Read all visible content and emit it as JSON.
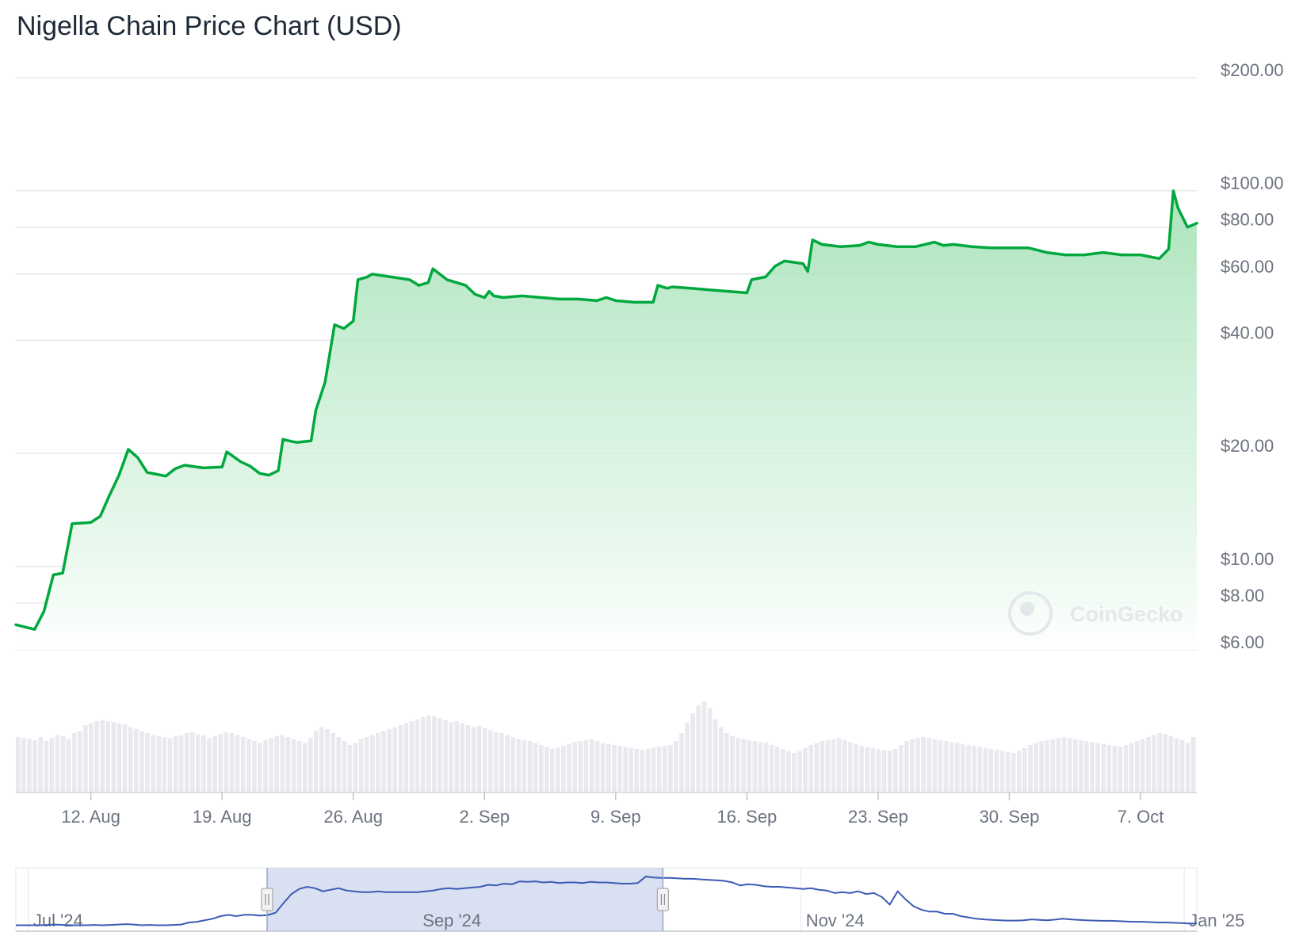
{
  "watermark": "CoinGecko",
  "chart_data": {
    "type": "area",
    "title": "Nigella Chain Price Chart (USD)",
    "xlabel": "",
    "ylabel": "",
    "y_scale": "log",
    "ylim": [
      6,
      200
    ],
    "y_ticks": [
      {
        "value": 200,
        "label": "$200.00"
      },
      {
        "value": 100,
        "label": "$100.00"
      },
      {
        "value": 80,
        "label": "$80.00"
      },
      {
        "value": 60,
        "label": "$60.00"
      },
      {
        "value": 40,
        "label": "$40.00"
      },
      {
        "value": 20,
        "label": "$20.00"
      },
      {
        "value": 10,
        "label": "$10.00"
      },
      {
        "value": 8,
        "label": "$8.00"
      },
      {
        "value": 6,
        "label": "$6.00"
      }
    ],
    "x_range": [
      "2024-08-08",
      "2024-10-10"
    ],
    "x_ticks": [
      {
        "date": "2024-08-12",
        "label": "12. Aug"
      },
      {
        "date": "2024-08-19",
        "label": "19. Aug"
      },
      {
        "date": "2024-08-26",
        "label": "26. Aug"
      },
      {
        "date": "2024-09-02",
        "label": "2. Sep"
      },
      {
        "date": "2024-09-09",
        "label": "9. Sep"
      },
      {
        "date": "2024-09-16",
        "label": "16. Sep"
      },
      {
        "date": "2024-09-23",
        "label": "23. Sep"
      },
      {
        "date": "2024-09-30",
        "label": "30. Sep"
      },
      {
        "date": "2024-10-07",
        "label": "7. Oct"
      }
    ],
    "series": [
      {
        "color": "#00a83e",
        "points": [
          [
            "2024-08-08",
            7.0
          ],
          [
            "2024-08-09",
            6.8
          ],
          [
            "2024-08-09T12",
            7.6
          ],
          [
            "2024-08-10",
            9.5
          ],
          [
            "2024-08-10T12",
            9.6
          ],
          [
            "2024-08-11",
            13.0
          ],
          [
            "2024-08-12",
            13.1
          ],
          [
            "2024-08-12T12",
            13.6
          ],
          [
            "2024-08-13",
            15.5
          ],
          [
            "2024-08-13T12",
            17.5
          ],
          [
            "2024-08-14",
            20.5
          ],
          [
            "2024-08-14T12",
            19.5
          ],
          [
            "2024-08-15",
            17.8
          ],
          [
            "2024-08-15T12",
            17.6
          ],
          [
            "2024-08-16",
            17.4
          ],
          [
            "2024-08-16T12",
            18.2
          ],
          [
            "2024-08-17",
            18.6
          ],
          [
            "2024-08-18",
            18.3
          ],
          [
            "2024-08-19",
            18.4
          ],
          [
            "2024-08-19T06",
            20.2
          ],
          [
            "2024-08-20",
            19.0
          ],
          [
            "2024-08-20T12",
            18.5
          ],
          [
            "2024-08-21",
            17.7
          ],
          [
            "2024-08-21T12",
            17.5
          ],
          [
            "2024-08-22",
            18.0
          ],
          [
            "2024-08-22T06",
            21.8
          ],
          [
            "2024-08-22T18",
            21.5
          ],
          [
            "2024-08-23",
            21.4
          ],
          [
            "2024-08-23T18",
            21.6
          ],
          [
            "2024-08-24",
            26.0
          ],
          [
            "2024-08-24T12",
            31.0
          ],
          [
            "2024-08-25",
            44.0
          ],
          [
            "2024-08-25T12",
            43.0
          ],
          [
            "2024-08-26",
            45.0
          ],
          [
            "2024-08-26T06",
            58.0
          ],
          [
            "2024-08-26T18",
            59.0
          ],
          [
            "2024-08-27",
            60.0
          ],
          [
            "2024-08-28",
            59.0
          ],
          [
            "2024-08-29",
            58.0
          ],
          [
            "2024-08-29T12",
            56.0
          ],
          [
            "2024-08-30",
            57.0
          ],
          [
            "2024-08-30T06",
            62.0
          ],
          [
            "2024-08-31",
            58.0
          ],
          [
            "2024-09-01",
            56.0
          ],
          [
            "2024-09-01T12",
            53.0
          ],
          [
            "2024-09-02",
            52.0
          ],
          [
            "2024-09-02T06",
            54.0
          ],
          [
            "2024-09-02T12",
            52.5
          ],
          [
            "2024-09-03",
            52.0
          ],
          [
            "2024-09-04",
            52.5
          ],
          [
            "2024-09-05",
            52.0
          ],
          [
            "2024-09-06",
            51.5
          ],
          [
            "2024-09-07",
            51.5
          ],
          [
            "2024-09-08",
            51.0
          ],
          [
            "2024-09-08T12",
            52.0
          ],
          [
            "2024-09-09",
            51.0
          ],
          [
            "2024-09-10",
            50.5
          ],
          [
            "2024-09-11",
            50.5
          ],
          [
            "2024-09-11T06",
            56.0
          ],
          [
            "2024-09-11T18",
            55.0
          ],
          [
            "2024-09-12",
            55.5
          ],
          [
            "2024-09-13",
            55.0
          ],
          [
            "2024-09-14",
            54.5
          ],
          [
            "2024-09-15",
            54.0
          ],
          [
            "2024-09-16",
            53.5
          ],
          [
            "2024-09-16T06",
            58.0
          ],
          [
            "2024-09-17",
            59.0
          ],
          [
            "2024-09-17T12",
            63.0
          ],
          [
            "2024-09-18",
            65.0
          ],
          [
            "2024-09-19",
            64.0
          ],
          [
            "2024-09-19T06",
            61.0
          ],
          [
            "2024-09-19T12",
            74.0
          ],
          [
            "2024-09-20",
            72.0
          ],
          [
            "2024-09-21",
            71.0
          ],
          [
            "2024-09-22",
            71.5
          ],
          [
            "2024-09-22T12",
            73.0
          ],
          [
            "2024-09-23",
            72.0
          ],
          [
            "2024-09-24",
            71.0
          ],
          [
            "2024-09-25",
            71.0
          ],
          [
            "2024-09-25T12",
            72.0
          ],
          [
            "2024-09-26",
            73.0
          ],
          [
            "2024-09-26T12",
            71.5
          ],
          [
            "2024-09-27",
            72.0
          ],
          [
            "2024-09-28",
            71.0
          ],
          [
            "2024-09-29",
            70.5
          ],
          [
            "2024-09-30",
            70.5
          ],
          [
            "2024-10-01",
            70.5
          ],
          [
            "2024-10-02",
            68.5
          ],
          [
            "2024-10-03",
            67.5
          ],
          [
            "2024-10-04",
            67.5
          ],
          [
            "2024-10-05",
            68.5
          ],
          [
            "2024-10-06",
            67.5
          ],
          [
            "2024-10-07",
            67.5
          ],
          [
            "2024-10-08",
            66.0
          ],
          [
            "2024-10-08T12",
            70.0
          ],
          [
            "2024-10-08T18",
            100.0
          ],
          [
            "2024-10-09",
            90.0
          ],
          [
            "2024-10-09T12",
            80.0
          ],
          [
            "2024-10-10",
            82.0
          ]
        ]
      }
    ],
    "volume_values": [
      56,
      55,
      54,
      53,
      56,
      52,
      55,
      58,
      57,
      54,
      60,
      62,
      68,
      70,
      72,
      73,
      72,
      71,
      70,
      69,
      66,
      64,
      62,
      60,
      58,
      57,
      56,
      55,
      57,
      58,
      60,
      61,
      59,
      58,
      55,
      57,
      59,
      61,
      60,
      58,
      56,
      54,
      52,
      50,
      53,
      55,
      57,
      58,
      56,
      54,
      52,
      50,
      55,
      62,
      66,
      64,
      60,
      56,
      52,
      48,
      50,
      54,
      56,
      58,
      60,
      62,
      64,
      66,
      68,
      70,
      72,
      74,
      76,
      78,
      77,
      75,
      73,
      71,
      72,
      70,
      68,
      66,
      67,
      65,
      63,
      61,
      60,
      58,
      56,
      54,
      53,
      52,
      50,
      48,
      46,
      44,
      45,
      47,
      49,
      51,
      52,
      53,
      54,
      52,
      50,
      49,
      48,
      47,
      46,
      45,
      44,
      43,
      44,
      45,
      46,
      47,
      48,
      52,
      60,
      70,
      80,
      88,
      92,
      85,
      74,
      66,
      60,
      57,
      55,
      54,
      53,
      52,
      51,
      50,
      48,
      46,
      44,
      42,
      40,
      42,
      45,
      48,
      50,
      52,
      53,
      54,
      55,
      53,
      51,
      49,
      47,
      46,
      45,
      44,
      43,
      42,
      44,
      48,
      52,
      54,
      55,
      56,
      55,
      54,
      53,
      52,
      51,
      50,
      49,
      48,
      47,
      46,
      45,
      44,
      43,
      42,
      41,
      40,
      42,
      45,
      48,
      50,
      52,
      53,
      54,
      55,
      56,
      55,
      54,
      53,
      52,
      51,
      50,
      49,
      48,
      47,
      46,
      48,
      50,
      52,
      54,
      56,
      58,
      60,
      59,
      57,
      55,
      53,
      50,
      56
    ],
    "navigator": {
      "x_ticks": [
        "Jul '24",
        "Sep '24",
        "Nov '24",
        "Jan '25"
      ],
      "selection": {
        "from": "2024-08-08",
        "to": "2024-10-10"
      },
      "values": [
        6.0,
        6.0,
        6.0,
        6.0,
        6.1,
        6.2,
        6.1,
        6.0,
        6.0,
        6.0,
        6.1,
        6.0,
        6.1,
        6.2,
        6.3,
        6.2,
        6.0,
        6.1,
        6.0,
        6.0,
        6.1,
        6.2,
        6.8,
        7.0,
        7.5,
        8.0,
        9.0,
        9.5,
        9.0,
        9.5,
        9.5,
        9.2,
        9.4,
        10.5,
        16,
        24,
        30,
        33,
        31,
        27,
        29,
        31,
        28,
        27,
        26,
        26,
        27,
        26,
        26,
        26,
        26,
        26,
        27,
        28,
        30,
        31,
        30,
        31,
        32,
        33,
        36,
        35,
        38,
        37,
        42,
        41,
        42,
        40,
        41,
        39,
        40,
        40,
        39,
        41,
        40,
        40,
        39,
        38,
        38,
        39,
        52,
        50,
        49,
        49,
        48,
        47,
        47,
        46,
        45,
        44,
        43,
        40,
        35,
        37,
        36,
        34,
        33,
        33,
        32,
        31,
        30,
        31,
        29,
        28,
        25,
        26,
        25,
        27,
        24,
        25,
        21,
        15,
        27,
        19,
        14,
        12,
        11,
        11,
        10,
        10,
        9,
        8.5,
        8,
        7.8,
        7.6,
        7.5,
        7.4,
        7.4,
        7.5,
        7.8,
        7.6,
        7.5,
        7.7,
        8.0,
        7.8,
        7.6,
        7.5,
        7.4,
        7.3,
        7.3,
        7.2,
        7.1,
        7.0,
        7.0,
        6.9,
        6.8,
        6.8,
        6.7,
        6.6,
        6.5,
        6.5
      ]
    }
  }
}
